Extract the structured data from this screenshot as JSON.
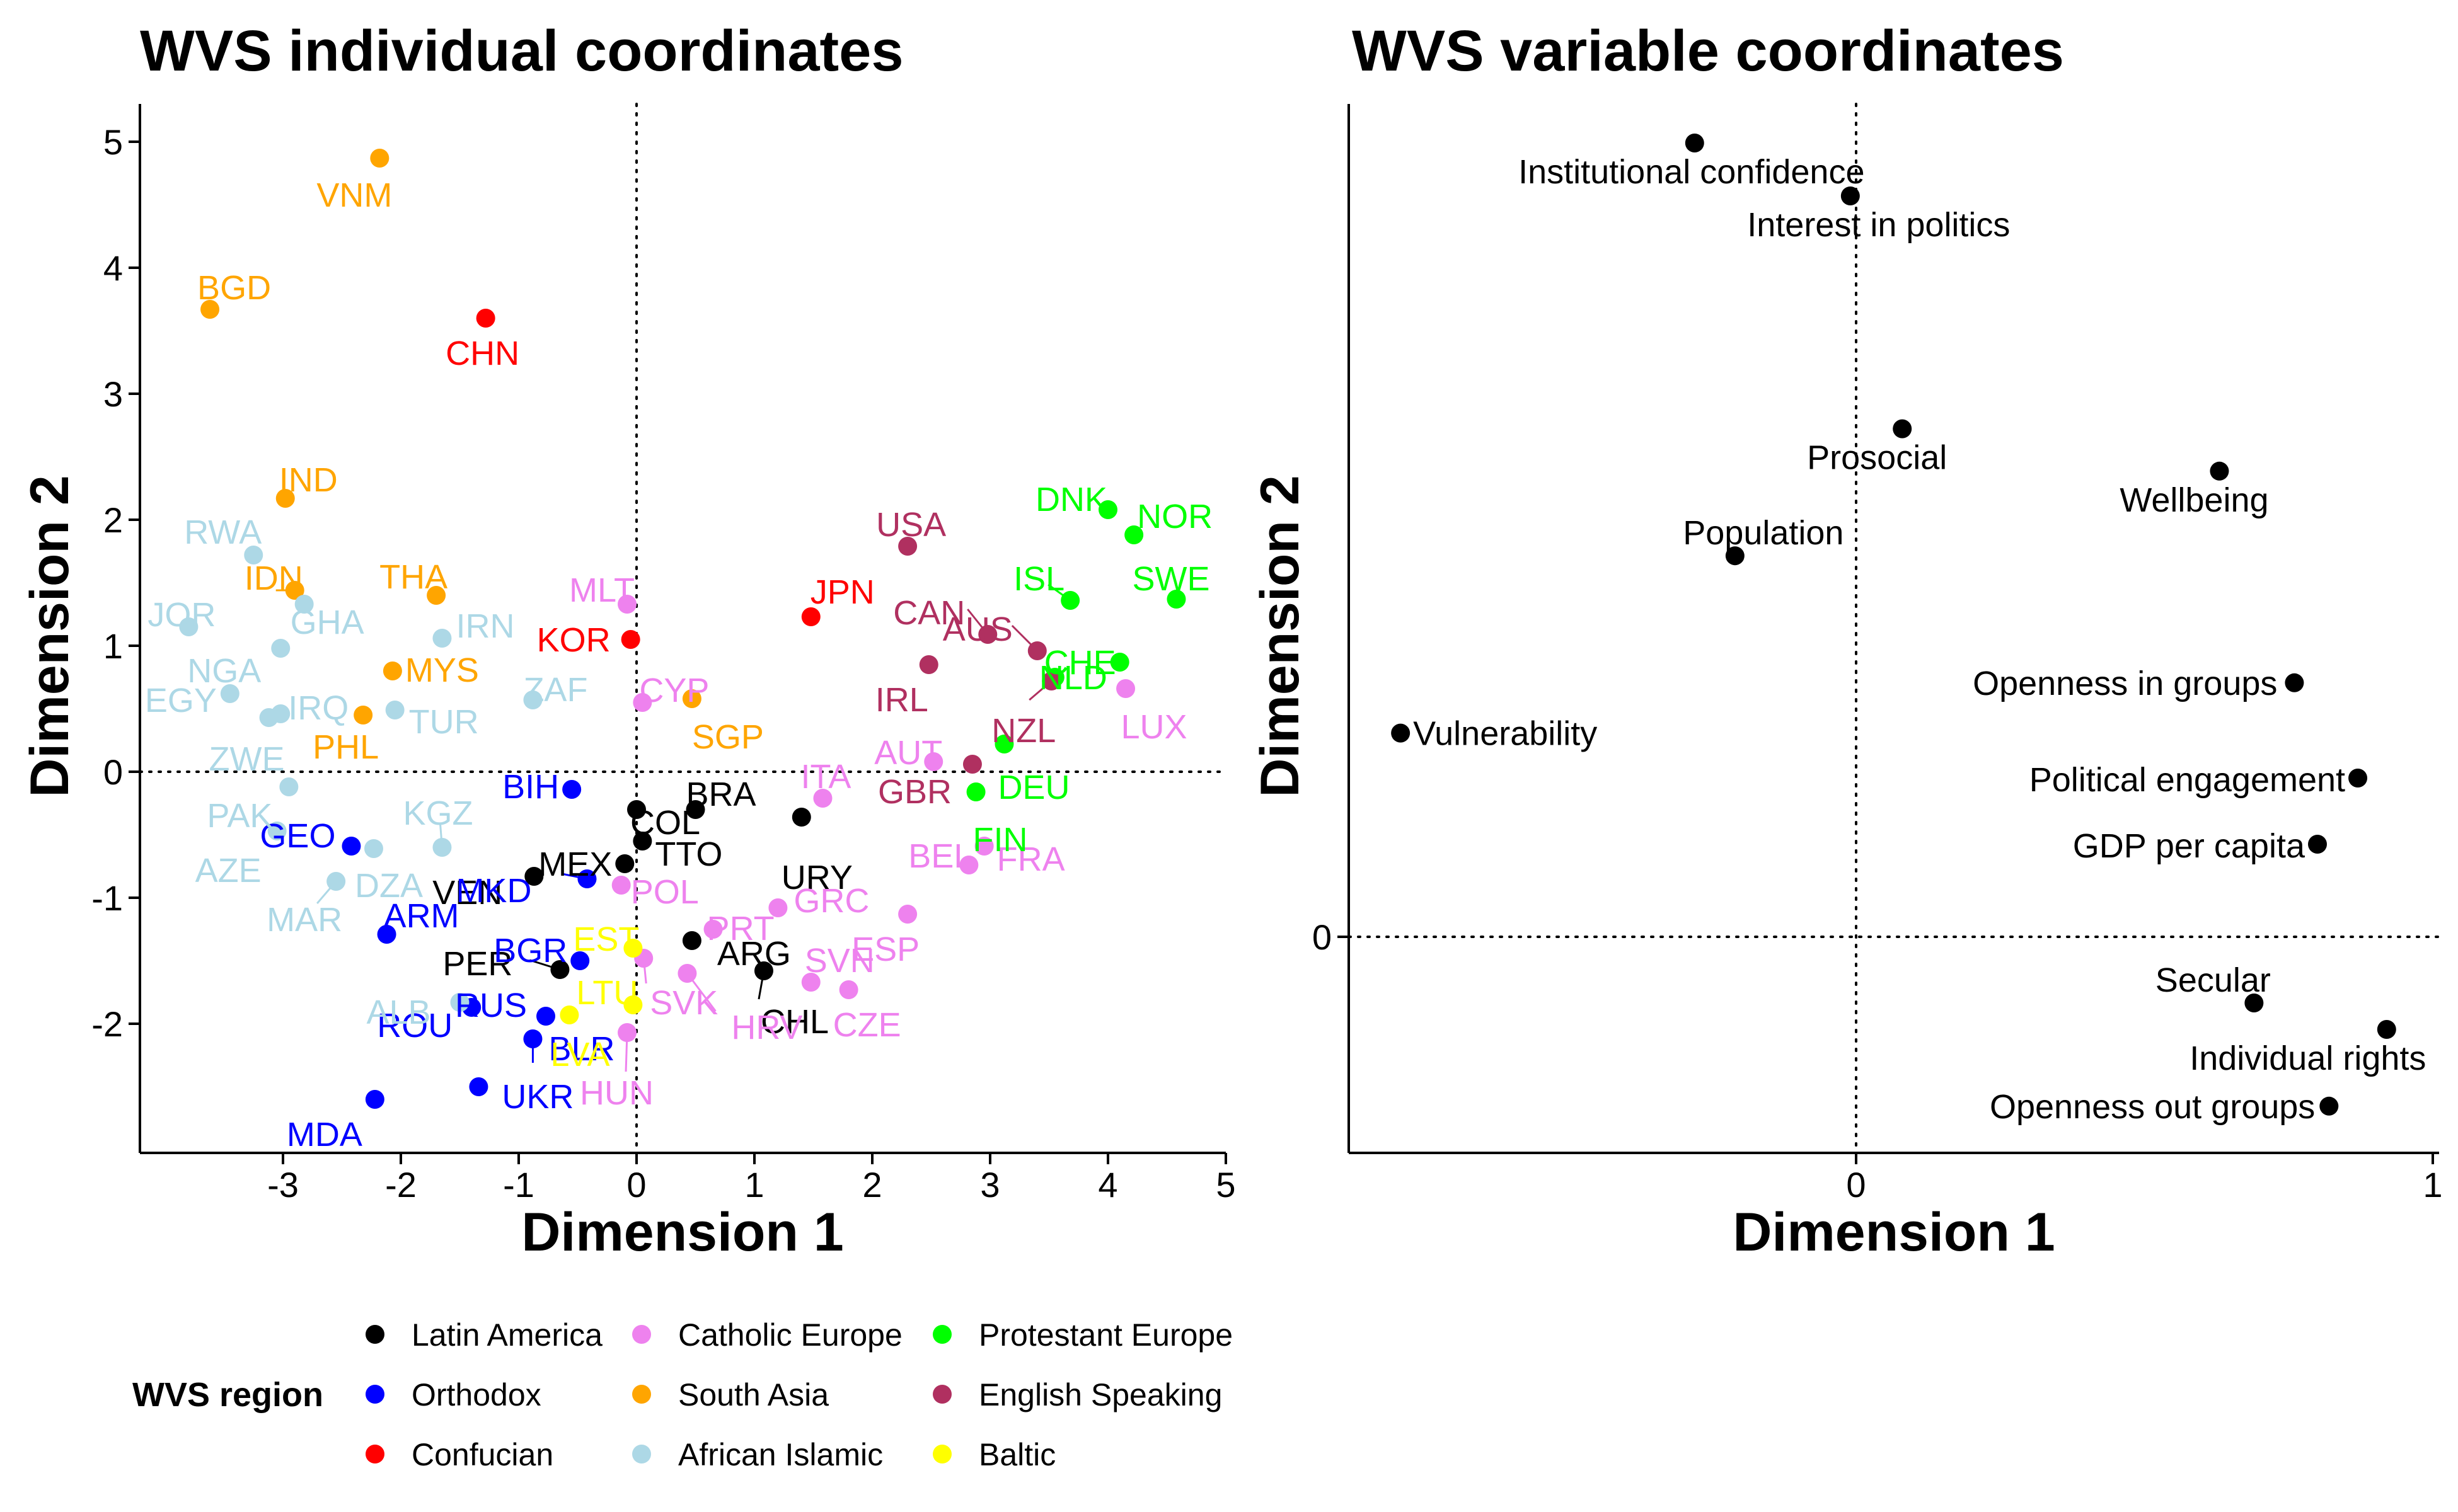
{
  "chart_data": [
    {
      "type": "scatter",
      "title": "WVS individual coordinates",
      "xlabel": "Dimension 1",
      "ylabel": "Dimension 2",
      "xlim": [
        -4.2,
        5.0
      ],
      "ylim": [
        -2.95,
        5.25
      ],
      "xticks": [
        -3,
        -2,
        -1,
        0,
        1,
        2,
        3,
        4,
        5
      ],
      "yticks": [
        -2,
        -1,
        0,
        1,
        2,
        3,
        4,
        5
      ],
      "reference_lines": {
        "x": 0,
        "y": 0,
        "style": "dotted"
      },
      "grid": false,
      "legend": {
        "title": "WVS region",
        "placement": "bottom",
        "entries": [
          {
            "name": "Latin America",
            "color": "#000000"
          },
          {
            "name": "Orthodox",
            "color": "#0000ff"
          },
          {
            "name": "Confucian",
            "color": "#ff0000"
          },
          {
            "name": "Catholic Europe",
            "color": "#ee82ee"
          },
          {
            "name": "South Asia",
            "color": "#ffa500"
          },
          {
            "name": "African Islamic",
            "color": "#add8e6"
          },
          {
            "name": "Protestant Europe",
            "color": "#00ff00"
          },
          {
            "name": "English Speaking",
            "color": "#b03060"
          },
          {
            "name": "Baltic",
            "color": "#ffff00"
          }
        ]
      },
      "series": [
        {
          "name": "Latin America",
          "color": "#000000",
          "points": [
            {
              "label": "COL",
              "x": 0.0,
              "y": -0.3
            },
            {
              "label": "BRA",
              "x": 0.5,
              "y": -0.3
            },
            {
              "label": "TTO",
              "x": 0.05,
              "y": -0.55
            },
            {
              "label": "MEX",
              "x": -0.1,
              "y": -0.73
            },
            {
              "label": "VEN",
              "x": -0.87,
              "y": -0.83
            },
            {
              "label": "URY",
              "x": 1.4,
              "y": -0.36
            },
            {
              "label": "PER",
              "x": -0.65,
              "y": -1.57
            },
            {
              "label": "ARG",
              "x": 0.47,
              "y": -1.34
            },
            {
              "label": "CHL",
              "x": 1.08,
              "y": -1.58
            }
          ]
        },
        {
          "name": "Orthodox",
          "color": "#0000ff",
          "points": [
            {
              "label": "BIH",
              "x": -0.55,
              "y": -0.14
            },
            {
              "label": "GEO",
              "x": -2.42,
              "y": -0.59
            },
            {
              "label": "MKD",
              "x": -0.42,
              "y": -0.85
            },
            {
              "label": "ARM",
              "x": -2.12,
              "y": -1.29
            },
            {
              "label": "BGR",
              "x": -0.48,
              "y": -1.5
            },
            {
              "label": "RUS",
              "x": -0.77,
              "y": -1.94
            },
            {
              "label": "ROU",
              "x": -1.4,
              "y": -1.87
            },
            {
              "label": "BLR",
              "x": -0.88,
              "y": -2.12
            },
            {
              "label": "UKR",
              "x": -1.34,
              "y": -2.5
            },
            {
              "label": "MDA",
              "x": -2.22,
              "y": -2.6
            }
          ]
        },
        {
          "name": "Confucian",
          "color": "#ff0000",
          "points": [
            {
              "label": "CHN",
              "x": -1.28,
              "y": 3.6
            },
            {
              "label": "KOR",
              "x": -0.05,
              "y": 1.05
            },
            {
              "label": "JPN",
              "x": 1.48,
              "y": 1.23
            }
          ]
        },
        {
          "name": "Catholic Europe",
          "color": "#ee82ee",
          "points": [
            {
              "label": "MLT",
              "x": -0.08,
              "y": 1.33
            },
            {
              "label": "CYP",
              "x": 0.05,
              "y": 0.55
            },
            {
              "label": "ITA",
              "x": 1.58,
              "y": -0.21
            },
            {
              "label": "AUT",
              "x": 2.52,
              "y": 0.08
            },
            {
              "label": "LUX",
              "x": 4.15,
              "y": 0.66
            },
            {
              "label": "FRA",
              "x": 2.95,
              "y": -0.59
            },
            {
              "label": "BEL",
              "x": 2.82,
              "y": -0.74
            },
            {
              "label": "POL",
              "x": -0.13,
              "y": -0.9
            },
            {
              "label": "PRT",
              "x": 0.65,
              "y": -1.25
            },
            {
              "label": "GRC",
              "x": 1.2,
              "y": -1.08
            },
            {
              "label": "ESP",
              "x": 2.3,
              "y": -1.13
            },
            {
              "label": "SVN",
              "x": 1.48,
              "y": -1.67
            },
            {
              "label": "CZE",
              "x": 1.8,
              "y": -1.73
            },
            {
              "label": "HRV",
              "x": 0.43,
              "y": -1.6
            },
            {
              "label": "SVK",
              "x": 0.06,
              "y": -1.48
            },
            {
              "label": "HUN",
              "x": -0.08,
              "y": -2.07
            }
          ]
        },
        {
          "name": "South Asia",
          "color": "#ffa500",
          "points": [
            {
              "label": "VNM",
              "x": -2.18,
              "y": 4.87
            },
            {
              "label": "BGD",
              "x": -3.62,
              "y": 3.67
            },
            {
              "label": "IND",
              "x": -2.98,
              "y": 2.17
            },
            {
              "label": "IDN",
              "x": -2.9,
              "y": 1.44
            },
            {
              "label": "THA",
              "x": -1.7,
              "y": 1.4
            },
            {
              "label": "MYS",
              "x": -2.07,
              "y": 0.8
            },
            {
              "label": "SGP",
              "x": 0.47,
              "y": 0.58
            },
            {
              "label": "PHL",
              "x": -2.32,
              "y": 0.45
            }
          ]
        },
        {
          "name": "African Islamic",
          "color": "#add8e6",
          "points": [
            {
              "label": "RWA",
              "x": -3.25,
              "y": 1.72
            },
            {
              "label": "JOR",
              "x": -3.8,
              "y": 1.15
            },
            {
              "label": "GHA",
              "x": -2.82,
              "y": 1.33
            },
            {
              "label": "IRN",
              "x": -1.65,
              "y": 1.06
            },
            {
              "label": "NGA",
              "x": -3.02,
              "y": 0.98
            },
            {
              "label": "EGY",
              "x": -3.45,
              "y": 0.62
            },
            {
              "label": "IRQ",
              "x": -3.02,
              "y": 0.46
            },
            {
              "label": "ZWE",
              "x": -3.12,
              "y": 0.43
            },
            {
              "label": "TUR",
              "x": -2.05,
              "y": 0.49
            },
            {
              "label": "ZAF",
              "x": -0.88,
              "y": 0.57
            },
            {
              "label": "PAK",
              "x": -2.95,
              "y": -0.12
            },
            {
              "label": "KGZ",
              "x": -1.65,
              "y": -0.6
            },
            {
              "label": "AZE",
              "x": -3.05,
              "y": -0.47
            },
            {
              "label": "DZA",
              "x": -2.23,
              "y": -0.61
            },
            {
              "label": "MAR",
              "x": -2.55,
              "y": -0.87
            },
            {
              "label": "ALB",
              "x": -1.5,
              "y": -1.83
            }
          ]
        },
        {
          "name": "Protestant Europe",
          "color": "#00ff00",
          "points": [
            {
              "label": "DNK",
              "x": 4.0,
              "y": 2.08
            },
            {
              "label": "NOR",
              "x": 4.22,
              "y": 1.88
            },
            {
              "label": "ISL",
              "x": 3.68,
              "y": 1.36
            },
            {
              "label": "SWE",
              "x": 4.58,
              "y": 1.37
            },
            {
              "label": "CHE",
              "x": 4.1,
              "y": 0.87
            },
            {
              "label": "NLD",
              "x": 3.55,
              "y": 0.75
            },
            {
              "label": "DEU",
              "x": 3.12,
              "y": 0.22
            },
            {
              "label": "FIN",
              "x": 2.88,
              "y": -0.16
            }
          ]
        },
        {
          "name": "English Speaking",
          "color": "#b03060",
          "points": [
            {
              "label": "USA",
              "x": 2.3,
              "y": 1.79
            },
            {
              "label": "CAN",
              "x": 2.98,
              "y": 1.09
            },
            {
              "label": "AUS",
              "x": 3.4,
              "y": 0.96
            },
            {
              "label": "IRL",
              "x": 2.48,
              "y": 0.85
            },
            {
              "label": "NZL",
              "x": 3.52,
              "y": 0.72
            },
            {
              "label": "GBR",
              "x": 2.85,
              "y": 0.06
            }
          ]
        },
        {
          "name": "Baltic",
          "color": "#ffff00",
          "points": [
            {
              "label": "EST",
              "x": -0.03,
              "y": -1.4
            },
            {
              "label": "LTU",
              "x": -0.03,
              "y": -1.85
            },
            {
              "label": "LVA",
              "x": -0.57,
              "y": -1.93
            }
          ]
        }
      ]
    },
    {
      "type": "scatter",
      "title": "WVS variable coordinates",
      "xlabel": "Dimension 1",
      "ylabel": "Dimension 2",
      "xlim": [
        -0.88,
        1.02
      ],
      "ylim": [
        -0.35,
        1.65
      ],
      "xticks": [
        0,
        1
      ],
      "yticks": [
        0
      ],
      "reference_lines": {
        "x": 0,
        "y": 0,
        "style": "dotted"
      },
      "grid": false,
      "points": [
        {
          "label": "Institutional confidence",
          "x": -0.28,
          "y": 1.5
        },
        {
          "label": "Interest in politics",
          "x": -0.01,
          "y": 1.4
        },
        {
          "label": "Prosocial",
          "x": 0.08,
          "y": 0.96
        },
        {
          "label": "Wellbeing",
          "x": 0.63,
          "y": 0.88
        },
        {
          "label": "Population",
          "x": -0.21,
          "y": 0.72
        },
        {
          "label": "Openness in groups",
          "x": 0.76,
          "y": 0.48
        },
        {
          "label": "Vulnerability",
          "x": -0.79,
          "y": 0.385
        },
        {
          "label": "Political engagement",
          "x": 0.87,
          "y": 0.3
        },
        {
          "label": "GDP per capita",
          "x": 0.8,
          "y": 0.175
        },
        {
          "label": "Secular",
          "x": 0.69,
          "y": -0.125
        },
        {
          "label": "Individual rights",
          "x": 0.92,
          "y": -0.175
        },
        {
          "label": "Openness out groups",
          "x": 0.82,
          "y": -0.32
        }
      ]
    }
  ]
}
